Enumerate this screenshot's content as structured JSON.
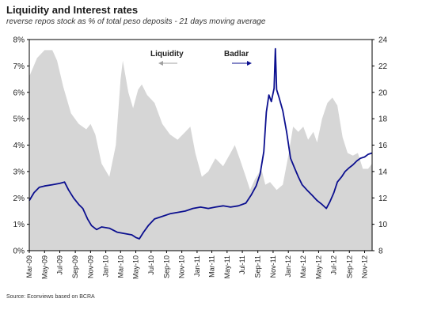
{
  "chart_data": {
    "type": "area",
    "title": "Liquidity and Interest rates",
    "subtitle": "reverse repos stock as % of total peso deposits - 21 days moving average",
    "source": "Source: Econviews based on BCRA",
    "x_tick_labels": [
      "Mar-09",
      "May-09",
      "Jul-09",
      "Sep-09",
      "Nov-09",
      "Jan-10",
      "Mar-10",
      "May-10",
      "Jul-10",
      "Sep-10",
      "Nov-10",
      "Jan-11",
      "Mar-11",
      "May-11",
      "Jul-11",
      "Sep-11",
      "Nov-11",
      "Jan-12",
      "Mar-12",
      "May-12",
      "Jul-12",
      "Sep-12",
      "Nov-12"
    ],
    "x_range": [
      "2009-03",
      "2012-12"
    ],
    "y_left": {
      "min": 0,
      "max": 8,
      "ticks": [
        "0%",
        "1%",
        "2%",
        "3%",
        "4%",
        "5%",
        "6%",
        "7%",
        "8%"
      ]
    },
    "y_right": {
      "min": 8,
      "max": 24,
      "ticks": [
        "8",
        "10",
        "12",
        "14",
        "16",
        "18",
        "20",
        "22",
        "24"
      ]
    },
    "annotations": {
      "liquidity": "Liquidity",
      "badlar": "Badlar"
    },
    "colors": {
      "liquidity_fill": "#d6d6d6",
      "badlar_line": "#0b0f8f",
      "liquidity_label": "#a0a0a0"
    },
    "series": [
      {
        "name": "Liquidity",
        "axis": "left",
        "style": "area",
        "points": [
          [
            "2009-03-01",
            6.6
          ],
          [
            "2009-04-01",
            7.3
          ],
          [
            "2009-05-01",
            7.6
          ],
          [
            "2009-06-01",
            7.6
          ],
          [
            "2009-06-20",
            7.2
          ],
          [
            "2009-07-15",
            6.2
          ],
          [
            "2009-08-15",
            5.2
          ],
          [
            "2009-09-15",
            4.8
          ],
          [
            "2009-10-15",
            4.6
          ],
          [
            "2009-11-01",
            4.8
          ],
          [
            "2009-11-20",
            4.4
          ],
          [
            "2009-12-15",
            3.3
          ],
          [
            "2010-01-15",
            2.8
          ],
          [
            "2010-02-10",
            4.0
          ],
          [
            "2010-03-01",
            6.5
          ],
          [
            "2010-03-10",
            7.2
          ],
          [
            "2010-04-01",
            6.0
          ],
          [
            "2010-04-20",
            5.4
          ],
          [
            "2010-05-10",
            6.1
          ],
          [
            "2010-05-25",
            6.3
          ],
          [
            "2010-06-15",
            5.9
          ],
          [
            "2010-07-15",
            5.6
          ],
          [
            "2010-08-15",
            4.8
          ],
          [
            "2010-09-15",
            4.4
          ],
          [
            "2010-10-15",
            4.2
          ],
          [
            "2010-11-15",
            4.5
          ],
          [
            "2010-12-05",
            4.7
          ],
          [
            "2010-12-25",
            3.7
          ],
          [
            "2011-01-20",
            2.8
          ],
          [
            "2011-02-15",
            3.0
          ],
          [
            "2011-03-15",
            3.5
          ],
          [
            "2011-04-15",
            3.2
          ],
          [
            "2011-05-15",
            3.7
          ],
          [
            "2011-06-01",
            4.0
          ],
          [
            "2011-06-20",
            3.5
          ],
          [
            "2011-07-15",
            2.8
          ],
          [
            "2011-08-01",
            2.3
          ],
          [
            "2011-08-20",
            2.7
          ],
          [
            "2011-09-15",
            3.1
          ],
          [
            "2011-10-01",
            2.5
          ],
          [
            "2011-10-20",
            2.6
          ],
          [
            "2011-11-15",
            2.3
          ],
          [
            "2011-12-10",
            2.5
          ],
          [
            "2012-01-01",
            3.6
          ],
          [
            "2012-01-20",
            4.7
          ],
          [
            "2012-02-10",
            4.5
          ],
          [
            "2012-03-01",
            4.7
          ],
          [
            "2012-03-20",
            4.2
          ],
          [
            "2012-04-10",
            4.5
          ],
          [
            "2012-04-25",
            4.1
          ],
          [
            "2012-05-15",
            5.0
          ],
          [
            "2012-06-05",
            5.6
          ],
          [
            "2012-06-25",
            5.8
          ],
          [
            "2012-07-15",
            5.5
          ],
          [
            "2012-08-05",
            4.3
          ],
          [
            "2012-08-25",
            3.7
          ],
          [
            "2012-09-15",
            3.6
          ],
          [
            "2012-10-05",
            3.7
          ],
          [
            "2012-10-25",
            3.1
          ],
          [
            "2012-11-15",
            3.1
          ],
          [
            "2012-12-01",
            3.3
          ]
        ]
      },
      {
        "name": "Badlar",
        "axis": "right",
        "style": "line",
        "points": [
          [
            "2009-03-01",
            11.8
          ],
          [
            "2009-03-20",
            12.4
          ],
          [
            "2009-04-10",
            12.8
          ],
          [
            "2009-05-01",
            12.9
          ],
          [
            "2009-06-01",
            13.0
          ],
          [
            "2009-07-01",
            13.1
          ],
          [
            "2009-07-20",
            13.2
          ],
          [
            "2009-08-05",
            12.6
          ],
          [
            "2009-08-25",
            12.0
          ],
          [
            "2009-09-15",
            11.5
          ],
          [
            "2009-10-01",
            11.2
          ],
          [
            "2009-10-20",
            10.4
          ],
          [
            "2009-11-05",
            9.9
          ],
          [
            "2009-11-25",
            9.6
          ],
          [
            "2009-12-15",
            9.8
          ],
          [
            "2010-01-15",
            9.7
          ],
          [
            "2010-02-15",
            9.4
          ],
          [
            "2010-03-15",
            9.3
          ],
          [
            "2010-04-15",
            9.2
          ],
          [
            "2010-05-01",
            9.0
          ],
          [
            "2010-05-15",
            8.9
          ],
          [
            "2010-06-01",
            9.4
          ],
          [
            "2010-06-20",
            9.9
          ],
          [
            "2010-07-15",
            10.4
          ],
          [
            "2010-08-15",
            10.6
          ],
          [
            "2010-09-15",
            10.8
          ],
          [
            "2010-10-15",
            10.9
          ],
          [
            "2010-11-15",
            11.0
          ],
          [
            "2010-12-15",
            11.2
          ],
          [
            "2011-01-15",
            11.3
          ],
          [
            "2011-02-15",
            11.2
          ],
          [
            "2011-03-15",
            11.3
          ],
          [
            "2011-04-15",
            11.4
          ],
          [
            "2011-05-15",
            11.3
          ],
          [
            "2011-06-15",
            11.4
          ],
          [
            "2011-07-15",
            11.6
          ],
          [
            "2011-08-05",
            12.2
          ],
          [
            "2011-08-25",
            12.9
          ],
          [
            "2011-09-10",
            13.8
          ],
          [
            "2011-09-25",
            15.5
          ],
          [
            "2011-10-05",
            18.5
          ],
          [
            "2011-10-15",
            19.8
          ],
          [
            "2011-10-25",
            19.3
          ],
          [
            "2011-11-05",
            20.3
          ],
          [
            "2011-11-10",
            23.3
          ],
          [
            "2011-11-15",
            20.2
          ],
          [
            "2011-11-25",
            19.6
          ],
          [
            "2011-12-10",
            18.6
          ],
          [
            "2011-12-25",
            17.0
          ],
          [
            "2012-01-10",
            15.0
          ],
          [
            "2012-01-25",
            14.3
          ],
          [
            "2012-02-10",
            13.6
          ],
          [
            "2012-02-25",
            13.0
          ],
          [
            "2012-03-15",
            12.6
          ],
          [
            "2012-04-05",
            12.2
          ],
          [
            "2012-04-25",
            11.8
          ],
          [
            "2012-05-15",
            11.5
          ],
          [
            "2012-06-01",
            11.2
          ],
          [
            "2012-06-15",
            11.7
          ],
          [
            "2012-07-01",
            12.4
          ],
          [
            "2012-07-15",
            13.2
          ],
          [
            "2012-08-01",
            13.6
          ],
          [
            "2012-08-15",
            14.0
          ],
          [
            "2012-09-01",
            14.3
          ],
          [
            "2012-09-15",
            14.5
          ],
          [
            "2012-10-01",
            14.8
          ],
          [
            "2012-10-15",
            15.0
          ],
          [
            "2012-11-01",
            15.1
          ],
          [
            "2012-11-15",
            15.3
          ],
          [
            "2012-12-01",
            15.4
          ]
        ]
      }
    ]
  }
}
